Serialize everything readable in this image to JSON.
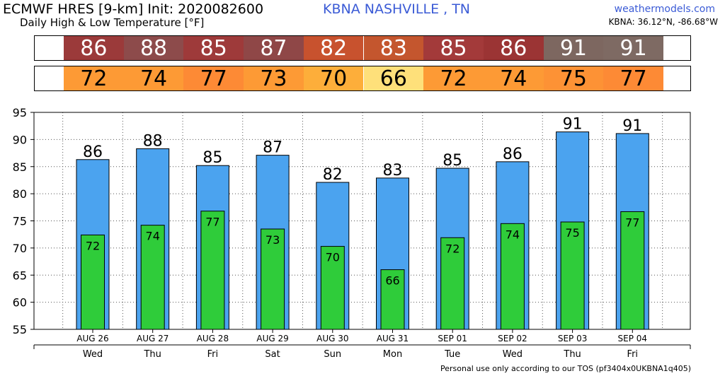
{
  "header": {
    "title": "ECMWF HRES [9-km] Init: 2020082600",
    "subtitle": "Daily High & Low Temperature [°F]",
    "station": "KBNA NASHVILLE      , TN",
    "site": "weathermodels.com",
    "coords": "KBNA: 36.12°N, -86.68°W"
  },
  "footer": "Personal use only according to our TOS (pf3404x0UKBNA1q405)",
  "strips": {
    "high": {
      "values": [
        "86",
        "88",
        "85",
        "87",
        "82",
        "83",
        "85",
        "86",
        "91",
        "91"
      ],
      "colors": [
        "#9b3a3a",
        "#8d4b4b",
        "#9e3a3a",
        "#8f4747",
        "#c8522e",
        "#c4562e",
        "#a33a3a",
        "#9b3434",
        "#7d6760",
        "#7e6a63"
      ]
    },
    "low": {
      "values": [
        "72",
        "74",
        "77",
        "73",
        "70",
        "66",
        "72",
        "74",
        "75",
        "77"
      ],
      "colors": [
        "#fd9a35",
        "#fd9a35",
        "#fd8a35",
        "#fd9a35",
        "#fdae3a",
        "#fee07a",
        "#fd9a35",
        "#fd9a35",
        "#fd9235",
        "#fd8a35"
      ]
    }
  },
  "chart_data": {
    "type": "bar",
    "categories": [
      "AUG 26",
      "AUG 27",
      "AUG 28",
      "AUG 29",
      "AUG 30",
      "AUG 31",
      "SEP 01",
      "SEP 02",
      "SEP 03",
      "SEP 04"
    ],
    "days": [
      "Wed",
      "Thu",
      "Fri",
      "Sat",
      "Sun",
      "Mon",
      "Tue",
      "Wed",
      "Thu",
      "Fri"
    ],
    "series": [
      {
        "values": [
          86.3,
          88.3,
          85.2,
          87.1,
          82.1,
          82.9,
          84.7,
          85.9,
          91.4,
          91.1
        ],
        "labels": [
          "86",
          "88",
          "85",
          "87",
          "82",
          "83",
          "85",
          "86",
          "91",
          "91"
        ],
        "color": "#4ba3ef"
      },
      {
        "values": [
          72.4,
          74.2,
          76.8,
          73.5,
          70.3,
          66.0,
          71.9,
          74.5,
          74.8,
          76.7
        ],
        "labels": [
          "72",
          "74",
          "77",
          "73",
          "70",
          "66",
          "72",
          "74",
          "75",
          "77"
        ],
        "color": "#2fcc3a"
      }
    ],
    "yticks": [
      55,
      60,
      65,
      70,
      75,
      80,
      85,
      90,
      95
    ],
    "ylim": [
      55,
      95
    ],
    "grid": true
  }
}
